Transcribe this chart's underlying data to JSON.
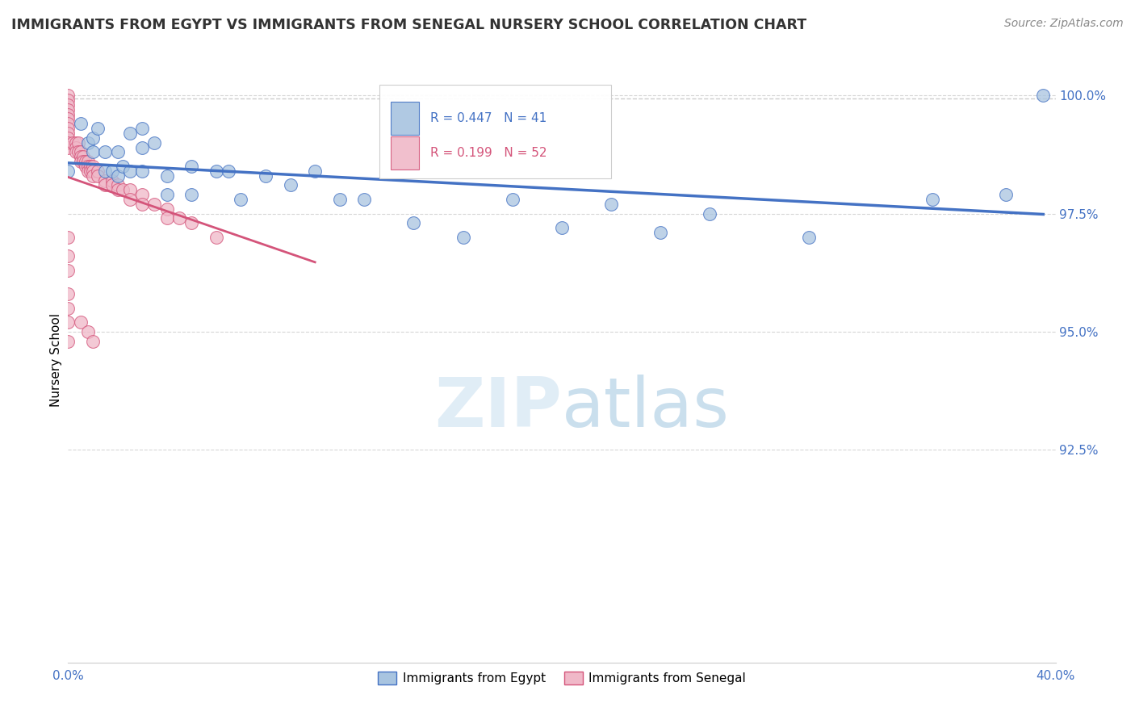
{
  "title": "IMMIGRANTS FROM EGYPT VS IMMIGRANTS FROM SENEGAL NURSERY SCHOOL CORRELATION CHART",
  "source": "Source: ZipAtlas.com",
  "ylabel": "Nursery School",
  "legend_egypt": "Immigrants from Egypt",
  "legend_senegal": "Immigrants from Senegal",
  "R_egypt": 0.447,
  "N_egypt": 41,
  "R_senegal": 0.199,
  "N_senegal": 52,
  "egypt_line_color": "#4472c4",
  "senegal_line_color": "#d4547a",
  "egypt_scatter_fill": "#a8c4e0",
  "egypt_scatter_edge": "#4472c4",
  "senegal_scatter_fill": "#f0b8c8",
  "senegal_scatter_edge": "#d4547a",
  "watermark_color": "#c8dff0",
  "xlim": [
    0.0,
    0.4
  ],
  "ylim": [
    0.88,
    1.008
  ],
  "yticks": [
    0.925,
    0.95,
    0.975,
    1.0
  ],
  "ytick_labels": [
    "92.5%",
    "95.0%",
    "97.5%",
    "100.0%"
  ],
  "egypt_x": [
    0.0,
    0.005,
    0.008,
    0.01,
    0.01,
    0.012,
    0.015,
    0.015,
    0.018,
    0.02,
    0.02,
    0.022,
    0.025,
    0.025,
    0.03,
    0.03,
    0.03,
    0.035,
    0.04,
    0.04,
    0.05,
    0.05,
    0.06,
    0.065,
    0.07,
    0.08,
    0.09,
    0.1,
    0.11,
    0.12,
    0.14,
    0.16,
    0.18,
    0.2,
    0.22,
    0.24,
    0.26,
    0.3,
    0.35,
    0.38,
    0.395
  ],
  "egypt_y": [
    0.984,
    0.994,
    0.99,
    0.991,
    0.988,
    0.993,
    0.988,
    0.984,
    0.984,
    0.988,
    0.983,
    0.985,
    0.992,
    0.984,
    0.993,
    0.989,
    0.984,
    0.99,
    0.983,
    0.979,
    0.985,
    0.979,
    0.984,
    0.984,
    0.978,
    0.983,
    0.981,
    0.984,
    0.978,
    0.978,
    0.973,
    0.97,
    0.978,
    0.972,
    0.977,
    0.971,
    0.975,
    0.97,
    0.978,
    0.979,
    1.0
  ],
  "senegal_x": [
    0.0,
    0.0,
    0.0,
    0.0,
    0.0,
    0.0,
    0.0,
    0.0,
    0.0,
    0.0,
    0.0,
    0.0,
    0.002,
    0.003,
    0.003,
    0.003,
    0.004,
    0.004,
    0.005,
    0.005,
    0.005,
    0.006,
    0.006,
    0.007,
    0.007,
    0.008,
    0.008,
    0.008,
    0.009,
    0.009,
    0.01,
    0.01,
    0.01,
    0.012,
    0.012,
    0.015,
    0.015,
    0.018,
    0.018,
    0.02,
    0.02,
    0.022,
    0.025,
    0.025,
    0.03,
    0.03,
    0.035,
    0.04,
    0.04,
    0.045,
    0.05,
    0.06
  ],
  "senegal_y": [
    1.0,
    0.999,
    0.998,
    0.997,
    0.996,
    0.995,
    0.994,
    0.993,
    0.992,
    0.991,
    0.99,
    0.989,
    0.99,
    0.99,
    0.989,
    0.988,
    0.99,
    0.988,
    0.988,
    0.987,
    0.986,
    0.987,
    0.986,
    0.986,
    0.985,
    0.986,
    0.985,
    0.984,
    0.985,
    0.984,
    0.985,
    0.984,
    0.983,
    0.984,
    0.983,
    0.982,
    0.981,
    0.982,
    0.981,
    0.981,
    0.98,
    0.98,
    0.98,
    0.978,
    0.979,
    0.977,
    0.977,
    0.976,
    0.974,
    0.974,
    0.973,
    0.97
  ],
  "senegal_low_x": [
    0.0,
    0.0,
    0.0,
    0.0,
    0.0,
    0.0,
    0.0,
    0.005,
    0.008,
    0.01
  ],
  "senegal_low_y": [
    0.97,
    0.966,
    0.963,
    0.958,
    0.955,
    0.952,
    0.948,
    0.952,
    0.95,
    0.948
  ],
  "dashed_x": [
    0.0,
    0.06,
    0.12,
    0.18,
    0.24,
    0.3,
    0.36,
    0.395
  ],
  "dashed_y": [
    0.999,
    0.999,
    0.999,
    0.999,
    0.999,
    0.999,
    0.999,
    0.999
  ]
}
